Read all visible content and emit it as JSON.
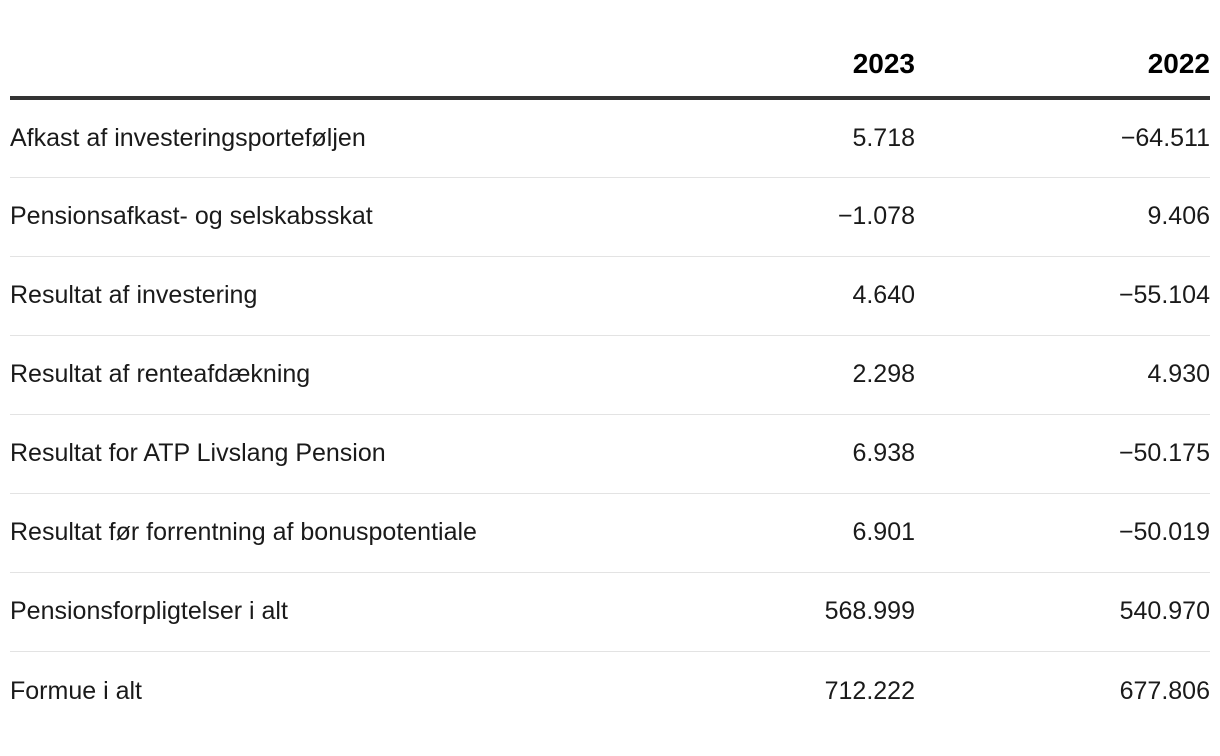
{
  "table": {
    "unit_note": "",
    "year_columns": [
      "2023",
      "2022"
    ],
    "rows": [
      {
        "label": "Afkast af investeringsporteføljen",
        "y2023": "5.718",
        "y2022": "−64.511"
      },
      {
        "label": "Pensionsafkast- og selskabsskat",
        "y2023": "−1.078",
        "y2022": "9.406"
      },
      {
        "label": "Resultat af investering",
        "y2023": "4.640",
        "y2022": "−55.104"
      },
      {
        "label": "Resultat af renteafdækning",
        "y2023": "2.298",
        "y2022": "4.930"
      },
      {
        "label": "Resultat for ATP Livslang Pension",
        "y2023": "6.938",
        "y2022": "−50.175"
      },
      {
        "label": "Resultat før forrentning af bonuspotentiale",
        "y2023": "6.901",
        "y2022": "−50.019"
      },
      {
        "label": "Pensionsforpligtelser i alt",
        "y2023": "568.999",
        "y2022": "540.970"
      },
      {
        "label": "Formue i alt",
        "y2023": "712.222",
        "y2022": "677.806"
      }
    ]
  },
  "colors": {
    "header_rule": "#333333",
    "row_rule": "#e3e3e3",
    "text": "#1a1a1a",
    "header_text": "#000000",
    "bg": "#ffffff"
  }
}
